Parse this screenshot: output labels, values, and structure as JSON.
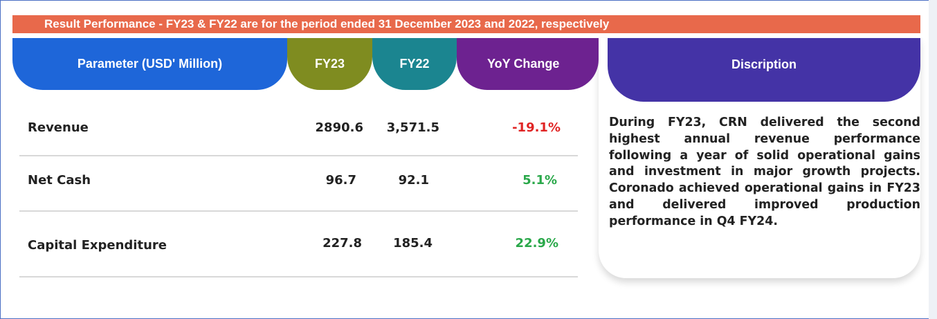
{
  "banner": "Result Performance - FY23 & FY22 are for the period ended 31 December 2023 and 2022, respectively",
  "headers": {
    "parameter": "Parameter (USD' Million)",
    "fy23": "FY23",
    "fy22": "FY22",
    "yoy": "YoY Change",
    "description": "Discription"
  },
  "rows": [
    {
      "parameter": "Revenue",
      "fy23": "2890.6",
      "fy22": "3,571.5",
      "yoy": "-19.1%"
    },
    {
      "parameter": "Net Cash",
      "fy23": "96.7",
      "fy22": "92.1",
      "yoy": "5.1%"
    },
    {
      "parameter": "Capital Expenditure",
      "fy23": "227.8",
      "fy22": "185.4",
      "yoy": "22.9%"
    }
  ],
  "description": "During FY23, CRN delivered the second highest annual revenue performance following a year of solid operational gains and investment in major growth projects. Coronado achieved operational gains in FY23 and delivered improved production performance in Q4 FY24.",
  "colors": {
    "banner": "#e8694b",
    "parameter": "#1e66d9",
    "fy23": "#7f8c20",
    "fy22": "#1b8590",
    "yoy": "#6d2290",
    "description": "#4433a6",
    "negative": "#e02424",
    "positive": "#2aa84a"
  }
}
